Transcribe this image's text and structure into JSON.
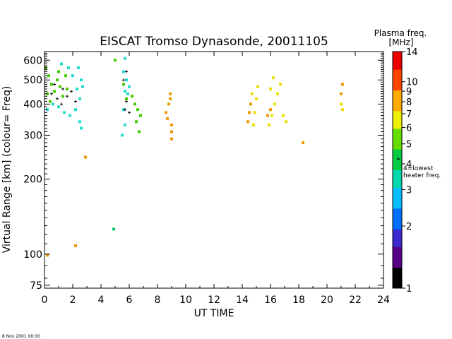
{
  "chart_data": {
    "type": "scatter",
    "title": "EISCAT Tromso Dynasonde,  20011105",
    "xlabel": "UT TIME",
    "ylabel": "Virtual Range [km]   (colour= Freq)",
    "x_ticks": [
      "0",
      "2",
      "4",
      "6",
      "8",
      "10",
      "12",
      "14",
      "16",
      "18",
      "20",
      "22",
      "24"
    ],
    "y_ticks": [
      "600",
      "500",
      "400",
      "300",
      "200",
      "100",
      "75"
    ],
    "xlim": [
      0,
      24
    ],
    "ylim": [
      73,
      650
    ],
    "y_scale": "log",
    "colorbar": {
      "title_line1": "Plasma freq.",
      "title_line2": "[MHz]",
      "ticks": [
        "14",
        "10",
        "9",
        "8",
        "7",
        "6",
        "5",
        "4",
        "3",
        "2",
        "1"
      ],
      "range": [
        1,
        14
      ],
      "scale": "log",
      "marker_value": 4,
      "marker_label_line1": "4=lowest",
      "marker_label_line2": "heater freq."
    },
    "footer": "8 Nov 2001 00:00",
    "series": [
      {
        "color": "#44cc00",
        "points": [
          [
            0.1,
            560
          ],
          [
            0.3,
            520
          ],
          [
            0.5,
            480
          ],
          [
            0.7,
            450
          ],
          [
            0.9,
            500
          ],
          [
            1.1,
            470
          ],
          [
            1.3,
            430
          ],
          [
            1.5,
            520
          ],
          [
            0.4,
            410
          ],
          [
            1.0,
            540
          ],
          [
            1.6,
            460
          ],
          [
            0.2,
            440
          ],
          [
            5.0,
            600
          ],
          [
            5.6,
            480
          ],
          [
            5.8,
            420
          ],
          [
            6.2,
            430
          ],
          [
            6.4,
            400
          ],
          [
            6.6,
            380
          ],
          [
            6.8,
            360
          ],
          [
            6.5,
            340
          ],
          [
            6.7,
            310
          ]
        ]
      },
      {
        "color": "#22ddcc",
        "points": [
          [
            0.2,
            380
          ],
          [
            0.6,
            400
          ],
          [
            1.0,
            390
          ],
          [
            1.4,
            370
          ],
          [
            1.8,
            360
          ],
          [
            2.2,
            380
          ],
          [
            2.5,
            420
          ],
          [
            2.7,
            470
          ],
          [
            2.0,
            520
          ],
          [
            1.7,
            560
          ],
          [
            2.4,
            560
          ],
          [
            1.2,
            580
          ],
          [
            2.6,
            500
          ],
          [
            2.3,
            460
          ],
          [
            2.5,
            340
          ],
          [
            2.6,
            320
          ],
          [
            5.6,
            540
          ],
          [
            5.7,
            450
          ],
          [
            5.6,
            380
          ],
          [
            5.7,
            330
          ],
          [
            5.8,
            500
          ],
          [
            5.9,
            440
          ],
          [
            5.7,
            610
          ],
          [
            6.0,
            470
          ],
          [
            5.5,
            300
          ]
        ]
      },
      {
        "color": "#ee9900",
        "points": [
          [
            8.6,
            370
          ],
          [
            8.8,
            400
          ],
          [
            8.9,
            420
          ],
          [
            8.7,
            350
          ],
          [
            9.0,
            330
          ],
          [
            9.0,
            310
          ],
          [
            9.0,
            290
          ],
          [
            8.9,
            440
          ],
          [
            14.4,
            340
          ],
          [
            14.5,
            370
          ],
          [
            14.6,
            400
          ],
          [
            15.8,
            360
          ],
          [
            16.0,
            380
          ],
          [
            18.3,
            280
          ],
          [
            21.0,
            440
          ],
          [
            21.1,
            480
          ],
          [
            2.9,
            245
          ],
          [
            2.2,
            108
          ],
          [
            0.2,
            99
          ]
        ]
      },
      {
        "color": "#eedd00",
        "points": [
          [
            14.8,
            330
          ],
          [
            14.9,
            370
          ],
          [
            15.0,
            420
          ],
          [
            15.1,
            470
          ],
          [
            14.7,
            440
          ],
          [
            15.9,
            330
          ],
          [
            16.1,
            360
          ],
          [
            16.3,
            400
          ],
          [
            16.5,
            440
          ],
          [
            16.7,
            480
          ],
          [
            16.9,
            360
          ],
          [
            17.1,
            340
          ],
          [
            16.0,
            460
          ],
          [
            16.2,
            510
          ],
          [
            21.0,
            400
          ],
          [
            21.1,
            380
          ]
        ]
      },
      {
        "color": "#00cc66",
        "points": [
          [
            4.9,
            126
          ]
        ]
      },
      {
        "color": "#000000",
        "points": [
          [
            0.5,
            440
          ],
          [
            0.9,
            420
          ],
          [
            1.3,
            460
          ],
          [
            1.6,
            430
          ],
          [
            1.9,
            450
          ],
          [
            2.2,
            410
          ],
          [
            0.7,
            480
          ],
          [
            1.2,
            400
          ],
          [
            5.7,
            380
          ],
          [
            5.8,
            410
          ],
          [
            6.0,
            370
          ],
          [
            5.6,
            500
          ],
          [
            5.8,
            540
          ]
        ]
      }
    ]
  }
}
